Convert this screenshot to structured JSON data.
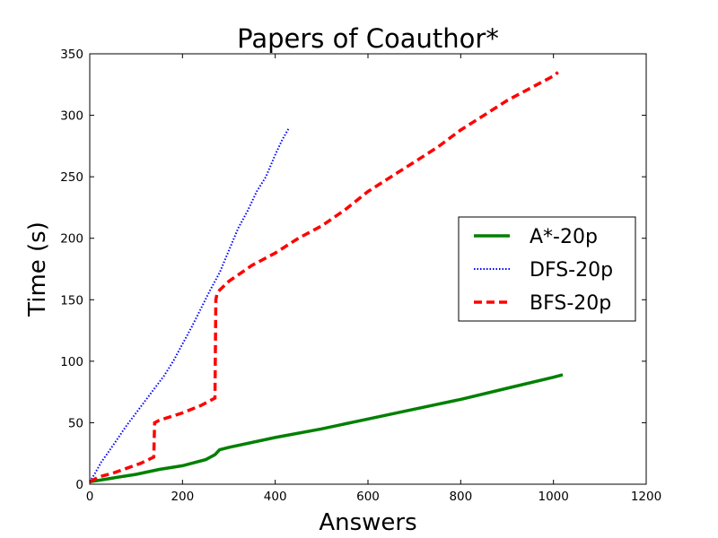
{
  "chart_data": {
    "type": "line",
    "title": "Papers of Coauthor*",
    "xlabel": "Answers",
    "ylabel": "Time (s)",
    "xlim": [
      0,
      1200
    ],
    "ylim": [
      0,
      350
    ],
    "xticks": [
      0,
      200,
      400,
      600,
      800,
      1000,
      1200
    ],
    "yticks": [
      0,
      50,
      100,
      150,
      200,
      250,
      300,
      350
    ],
    "grid": false,
    "legend_position": "center-right",
    "series": [
      {
        "name": "A*-20p",
        "color": "#008000",
        "linestyle": "solid",
        "x": [
          0,
          50,
          100,
          150,
          200,
          250,
          270,
          280,
          300,
          400,
          500,
          600,
          700,
          800,
          900,
          1000,
          1020
        ],
        "y": [
          2,
          5,
          8,
          12,
          15,
          20,
          24,
          28,
          30,
          38,
          45,
          53,
          61,
          69,
          78,
          87,
          89
        ]
      },
      {
        "name": "DFS-20p",
        "color": "#0000ff",
        "linestyle": "dotted",
        "x": [
          0,
          10,
          25,
          40,
          60,
          80,
          100,
          120,
          140,
          160,
          180,
          200,
          220,
          240,
          260,
          280,
          300,
          320,
          340,
          360,
          380,
          400,
          415,
          430
        ],
        "y": [
          2,
          8,
          18,
          26,
          37,
          48,
          58,
          68,
          78,
          88,
          100,
          114,
          128,
          143,
          158,
          172,
          190,
          208,
          222,
          238,
          250,
          268,
          280,
          290
        ]
      },
      {
        "name": "BFS-20p",
        "color": "#ff0000",
        "linestyle": "dashed",
        "x": [
          0,
          20,
          50,
          80,
          110,
          138,
          140,
          150,
          200,
          240,
          270,
          272,
          275,
          300,
          350,
          400,
          450,
          500,
          550,
          600,
          650,
          700,
          750,
          800,
          850,
          900,
          950,
          1000,
          1010
        ],
        "y": [
          2,
          6,
          9,
          13,
          17,
          22,
          50,
          52,
          58,
          64,
          70,
          150,
          156,
          165,
          178,
          188,
          200,
          210,
          223,
          238,
          250,
          262,
          274,
          288,
          300,
          312,
          322,
          332,
          335
        ]
      }
    ]
  }
}
